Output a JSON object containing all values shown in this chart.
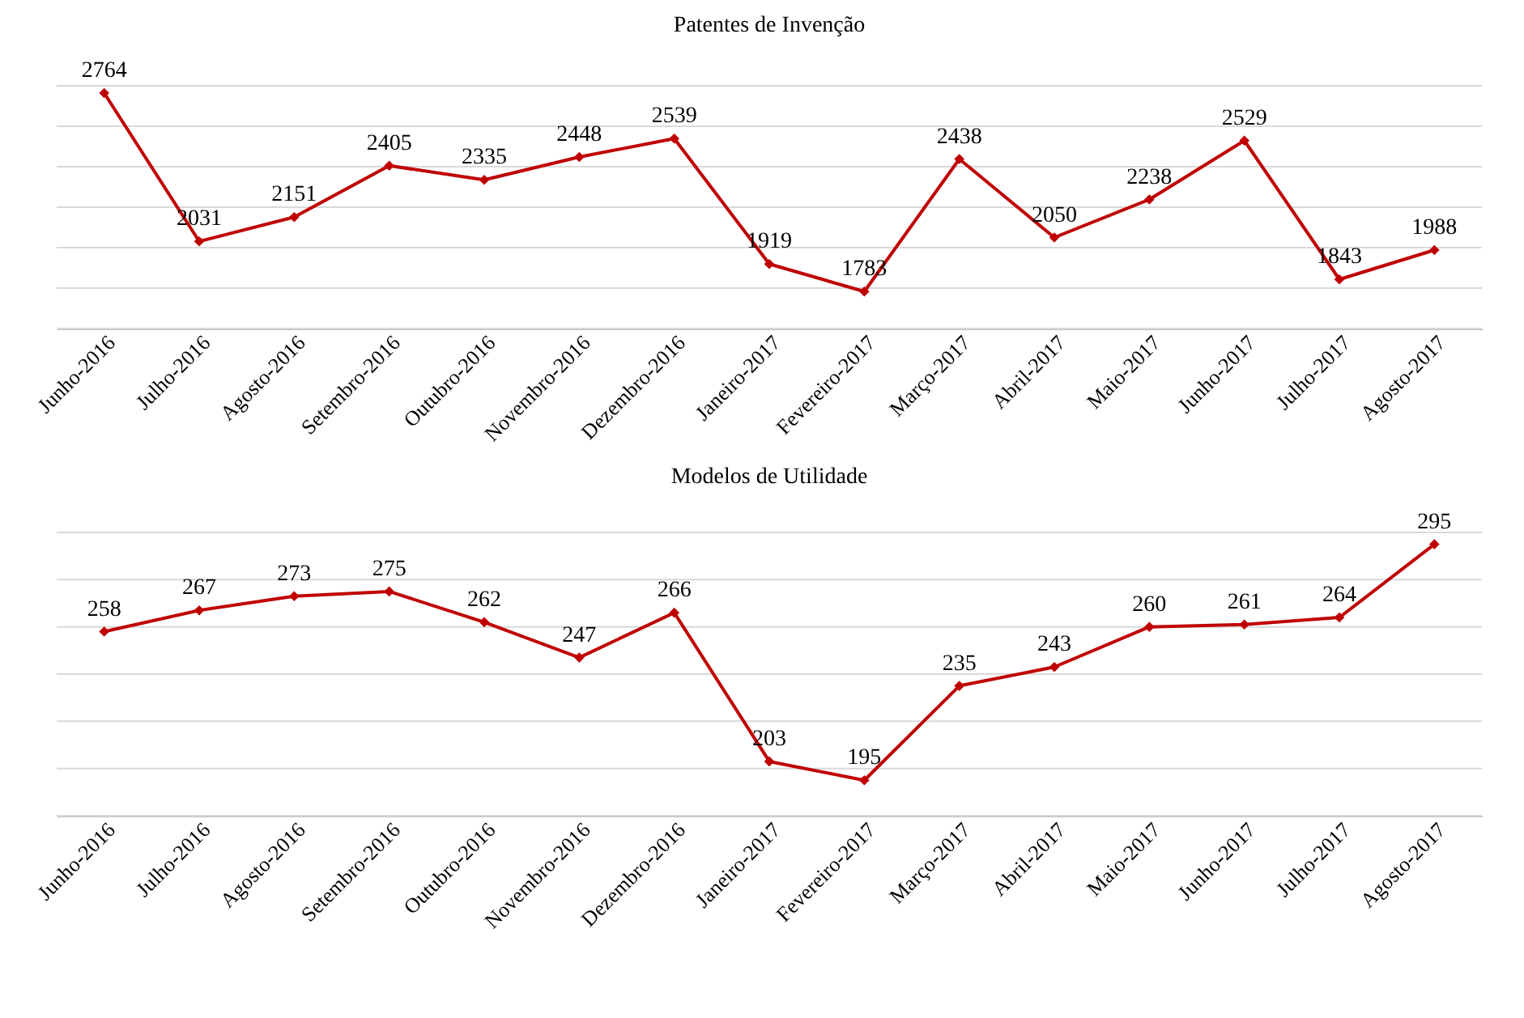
{
  "chart_data": [
    {
      "type": "line",
      "title": "Patentes de Invenção",
      "categories": [
        "Junho-2016",
        "Julho-2016",
        "Agosto-2016",
        "Setembro-2016",
        "Outubro-2016",
        "Novembro-2016",
        "Dezembro-2016",
        "Janeiro-2017",
        "Fevereiro-2017",
        "Março-2017",
        "Abril-2017",
        "Maio-2017",
        "Junho-2017",
        "Julho-2017",
        "Agosto-2017"
      ],
      "series": [
        {
          "color": "#c00000",
          "values": [
            2764,
            2031,
            2151,
            2405,
            2335,
            2448,
            2539,
            1919,
            1783,
            2438,
            2050,
            2238,
            2529,
            1843,
            1988
          ]
        }
      ],
      "ylim": [
        1600,
        2800
      ],
      "yticks": [
        1600,
        1800,
        2000,
        2200,
        2400,
        2600,
        2800
      ],
      "grid": "y",
      "tick_labels": "x",
      "data_labels": true,
      "marker": "diamond",
      "line_style": "solid"
    },
    {
      "type": "line",
      "title": "Modelos de Utilidade",
      "categories": [
        "Junho-2016",
        "Julho-2016",
        "Agosto-2016",
        "Setembro-2016",
        "Outubro-2016",
        "Novembro-2016",
        "Dezembro-2016",
        "Janeiro-2017",
        "Fevereiro-2017",
        "Março-2017",
        "Abril-2017",
        "Maio-2017",
        "Junho-2017",
        "Julho-2017",
        "Agosto-2017"
      ],
      "series": [
        {
          "color": "#c00000",
          "values": [
            258,
            267,
            273,
            275,
            262,
            247,
            266,
            203,
            195,
            235,
            243,
            260,
            261,
            264,
            295
          ]
        }
      ],
      "ylim": [
        180,
        300
      ],
      "yticks": [
        180,
        200,
        220,
        240,
        260,
        280,
        300
      ],
      "grid": "y",
      "tick_labels": "x",
      "data_labels": true,
      "marker": "diamond",
      "line_style": "solid"
    }
  ]
}
